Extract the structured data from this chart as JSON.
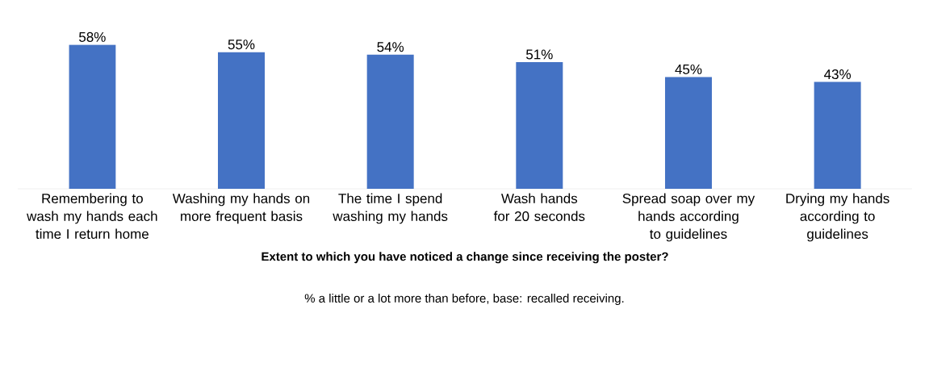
{
  "chart_data": {
    "type": "bar",
    "xlabel": "Extent to which you have noticed a change since receiving the poster?",
    "annotations": [
      "% a little or a lot more than before, base: recalled receiving."
    ],
    "categories": [
      "Remembering to wash my hands each time I return home",
      "Washing my hands on more frequent basis",
      "The time I spend washing my hands",
      "Wash hands for 20 seconds",
      "Spread soap over my hands according to guidelines",
      "Drying my hands according to guidelines"
    ],
    "values": [
      58,
      55,
      54,
      51,
      45,
      43
    ],
    "value_labels": [
      "58%",
      "55%",
      "54%",
      "51%",
      "45%",
      "43%"
    ],
    "color": "#4472c4"
  }
}
